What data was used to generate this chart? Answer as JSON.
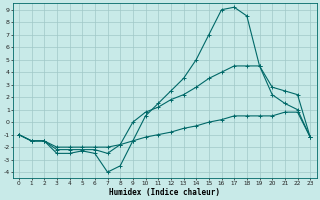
{
  "xlabel": "Humidex (Indice chaleur)",
  "xlim": [
    -0.5,
    23.5
  ],
  "ylim": [
    -4.5,
    9.5
  ],
  "yticks": [
    -4,
    -3,
    -2,
    -1,
    0,
    1,
    2,
    3,
    4,
    5,
    6,
    7,
    8,
    9
  ],
  "xticks": [
    0,
    1,
    2,
    3,
    4,
    5,
    6,
    7,
    8,
    9,
    10,
    11,
    12,
    13,
    14,
    15,
    16,
    17,
    18,
    19,
    20,
    21,
    22,
    23
  ],
  "bg_color": "#c8eae8",
  "grid_color": "#a0c8c8",
  "line_color": "#006868",
  "curve1_x": [
    0,
    1,
    2,
    3,
    4,
    5,
    6,
    7,
    8,
    9,
    10,
    11,
    12,
    13,
    14,
    15,
    16,
    17,
    18,
    19,
    20,
    21,
    22,
    23
  ],
  "curve1_y": [
    -1,
    -1.5,
    -1.5,
    -2.5,
    -2.5,
    -2.3,
    -2.5,
    -4.0,
    -3.5,
    -1.5,
    0.5,
    1.5,
    2.5,
    3.5,
    5.0,
    7.0,
    9.0,
    9.2,
    8.5,
    4.5,
    2.2,
    1.5,
    1.0,
    -1.2
  ],
  "curve2_x": [
    0,
    1,
    2,
    3,
    4,
    5,
    6,
    7,
    8,
    9,
    10,
    11,
    12,
    13,
    14,
    15,
    16,
    17,
    18,
    19,
    20,
    21,
    22,
    23
  ],
  "curve2_y": [
    -1,
    -1.5,
    -1.5,
    -2.2,
    -2.2,
    -2.2,
    -2.2,
    -2.5,
    -1.8,
    0.0,
    0.8,
    1.2,
    1.8,
    2.2,
    2.8,
    3.5,
    4.0,
    4.5,
    4.5,
    4.5,
    2.8,
    2.5,
    2.2,
    -1.2
  ],
  "curve3_x": [
    0,
    1,
    2,
    3,
    4,
    5,
    6,
    7,
    8,
    9,
    10,
    11,
    12,
    13,
    14,
    15,
    16,
    17,
    18,
    19,
    20,
    21,
    22,
    23
  ],
  "curve3_y": [
    -1,
    -1.5,
    -1.5,
    -2.0,
    -2.0,
    -2.0,
    -2.0,
    -2.0,
    -1.8,
    -1.5,
    -1.2,
    -1.0,
    -0.8,
    -0.5,
    -0.3,
    0.0,
    0.2,
    0.5,
    0.5,
    0.5,
    0.5,
    0.8,
    0.8,
    -1.2
  ]
}
